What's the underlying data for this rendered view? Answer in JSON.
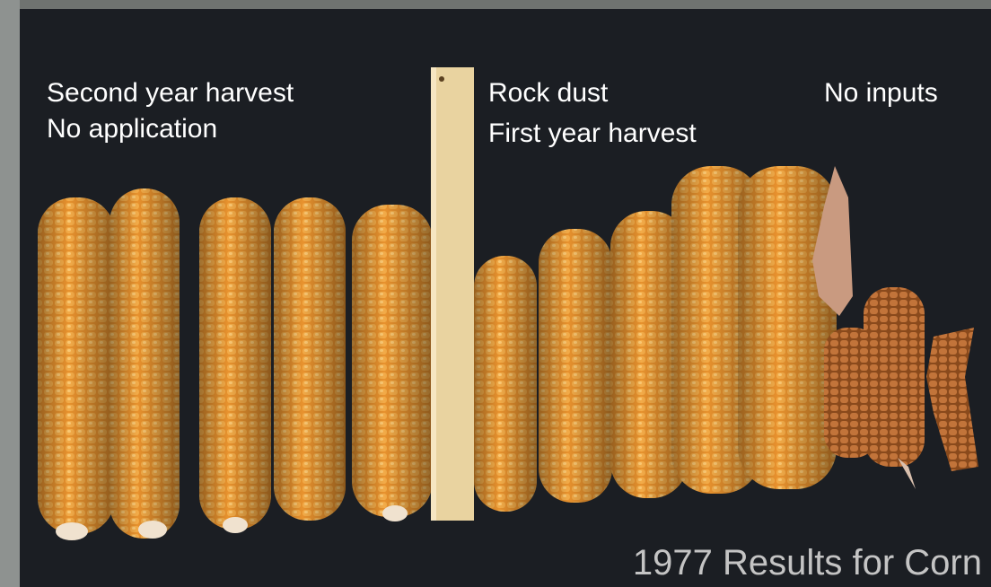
{
  "labels": {
    "group1_line1": "Second year harvest",
    "group1_line2": "No application",
    "group2_line1": "Rock dust",
    "group2_line2": "First year harvest",
    "group3_line1": "No inputs"
  },
  "caption": "1977 Results for Corn"
}
